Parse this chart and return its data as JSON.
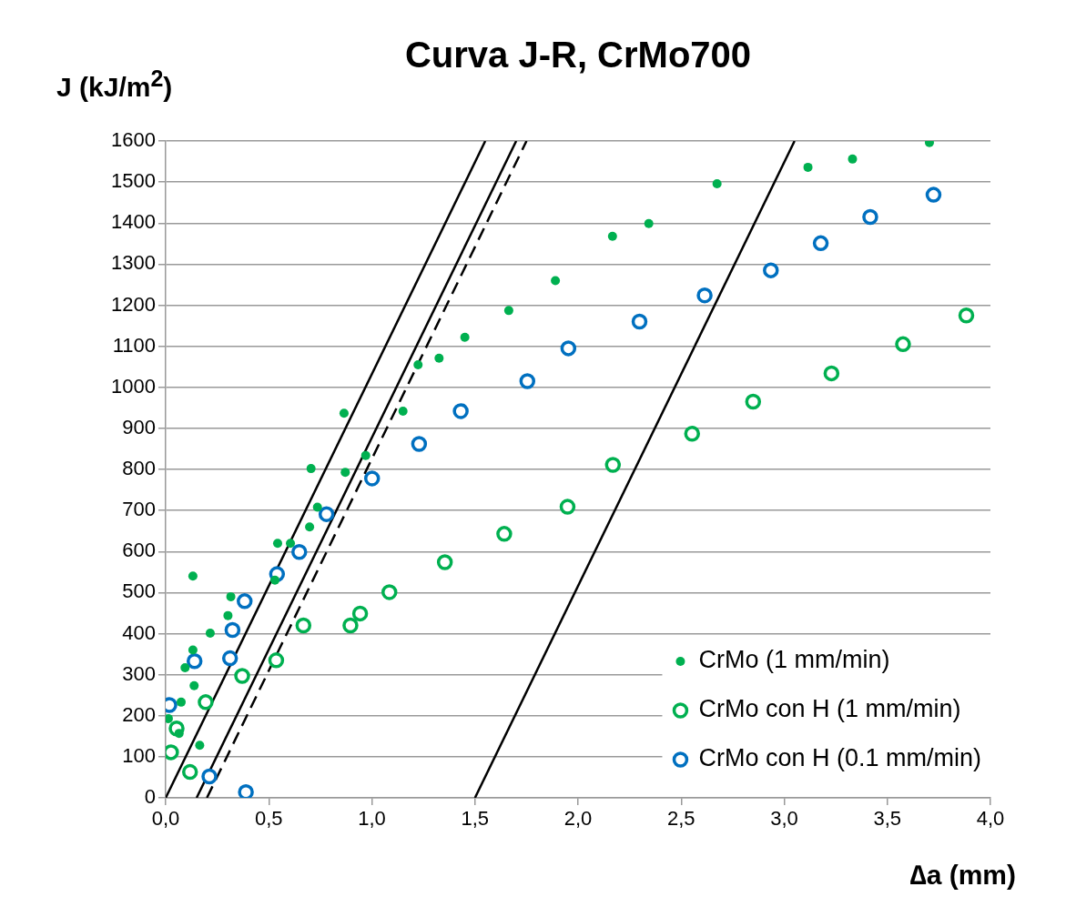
{
  "chart_data": {
    "type": "scatter",
    "title": "Curva J-R, CrMo700",
    "xlabel": "∆a (mm)",
    "ylabel": "J (kJ/m$^{2}$)",
    "xlim": [
      0,
      4
    ],
    "xticks": [
      {
        "value": 0,
        "label": "0,0"
      },
      {
        "value": 0.5,
        "label": "0,5"
      },
      {
        "value": 1,
        "label": "1,0"
      },
      {
        "value": 1.5,
        "label": "1,5"
      },
      {
        "value": 2,
        "label": "2,0"
      },
      {
        "value": 2.5,
        "label": "2,5"
      },
      {
        "value": 3,
        "label": "3,0"
      },
      {
        "value": 3.5,
        "label": "3,5"
      },
      {
        "value": 4,
        "label": "4,0"
      }
    ],
    "ylim": [
      0,
      1600
    ],
    "yticks": [
      0,
      100,
      200,
      300,
      400,
      500,
      600,
      700,
      800,
      900,
      1000,
      1100,
      1200,
      1300,
      1400,
      1500,
      1600
    ],
    "grid": "y",
    "legend": "bottom right",
    "series": [
      {
        "name": "CrMo (1 mm/min)",
        "marker": "circle",
        "color": "#00b050",
        "x": [
          0.013,
          0.065,
          0.075,
          0.094,
          0.132,
          0.132,
          0.138,
          0.165,
          0.216,
          0.302,
          0.316,
          0.53,
          0.543,
          0.605,
          0.698,
          0.705,
          0.736,
          0.865,
          0.871,
          0.97,
          1.151,
          1.224,
          1.326,
          1.451,
          1.664,
          1.89,
          2.167,
          2.343,
          2.674,
          3.115,
          3.331,
          3.704
        ],
        "values": [
          193,
          157,
          233,
          317,
          360,
          540,
          273,
          128,
          401,
          444,
          490,
          530,
          620,
          620,
          660,
          802,
          708,
          937,
          793,
          834,
          942,
          1055,
          1071,
          1122,
          1187,
          1260,
          1368,
          1399,
          1496,
          1536,
          1556,
          1596
        ]
      },
      {
        "name": "CrMo con H (1 mm/min)",
        "marker": "circle",
        "color": "#00b050",
        "x": [
          0.026,
          0.053,
          0.118,
          0.194,
          0.371,
          0.536,
          0.668,
          0.896,
          0.943,
          1.085,
          1.354,
          1.642,
          1.949,
          2.169,
          2.553,
          2.849,
          3.229,
          3.576,
          3.883
        ],
        "values": [
          111,
          169,
          63,
          233,
          297,
          335,
          420,
          420,
          449,
          501,
          574,
          643,
          709,
          811,
          887,
          965,
          1034,
          1105,
          1175
        ]
      },
      {
        "name": "CrMo con H (0.1 mm/min)",
        "marker": "circle",
        "color": "#0070c0",
        "x": [
          0.018,
          0.14,
          0.212,
          0.312,
          0.324,
          0.383,
          0.389,
          0.54,
          0.648,
          0.78,
          1.001,
          1.229,
          1.431,
          1.754,
          1.953,
          2.298,
          2.614,
          2.935,
          3.177,
          3.417,
          3.724
        ],
        "values": [
          226,
          333,
          52,
          340,
          409,
          479,
          14,
          545,
          599,
          691,
          778,
          862,
          942,
          1015,
          1095,
          1160,
          1224,
          1285,
          1351,
          1415,
          1469
        ]
      },
      {
        "type": "line",
        "marker": "none",
        "color": "#000000",
        "line_style": "solid",
        "x": [
          0,
          1.55
        ],
        "values": [
          0,
          1600
        ]
      },
      {
        "type": "line",
        "marker": "none",
        "color": "#000000",
        "line_style": "solid",
        "x": [
          0.15,
          1.7
        ],
        "values": [
          0,
          1600
        ]
      },
      {
        "type": "line",
        "marker": "none",
        "color": "#000000",
        "line_style": "dashed",
        "x": [
          0.2,
          1.75
        ],
        "values": [
          0,
          1600
        ]
      },
      {
        "type": "line",
        "marker": "none",
        "color": "#000000",
        "line_style": "solid",
        "x": [
          1.5,
          3.05
        ],
        "values": [
          0,
          1600
        ]
      }
    ]
  }
}
